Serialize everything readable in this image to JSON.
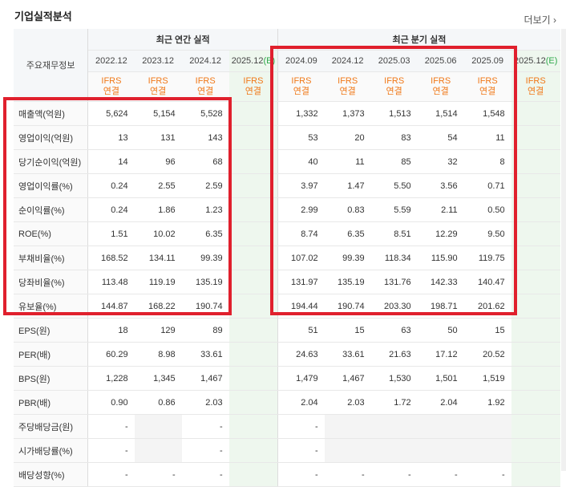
{
  "section": {
    "title": "기업실적분석",
    "more": "더보기"
  },
  "header": {
    "row_label_header": "주요재무정보",
    "annual_group": "최근 연간 실적",
    "quarter_group": "최근 분기 실적",
    "annual_periods": [
      "2022.12",
      "2023.12",
      "2024.12",
      "2025.12"
    ],
    "quarter_periods": [
      "2024.09",
      "2024.12",
      "2025.03",
      "2025.06",
      "2025.09",
      "2025.12"
    ],
    "estimate_mark": "(E)",
    "ifrs_line1": "IFRS",
    "ifrs_line2": "연결"
  },
  "rows": [
    {
      "label": "매출액(억원)",
      "annual": [
        "5,624",
        "5,154",
        "5,528",
        ""
      ],
      "quarter": [
        "1,332",
        "1,373",
        "1,513",
        "1,514",
        "1,548",
        ""
      ]
    },
    {
      "label": "영업이익(억원)",
      "annual": [
        "13",
        "131",
        "143",
        ""
      ],
      "quarter": [
        "53",
        "20",
        "83",
        "54",
        "11",
        ""
      ]
    },
    {
      "label": "당기순이익(억원)",
      "annual": [
        "14",
        "96",
        "68",
        ""
      ],
      "quarter": [
        "40",
        "11",
        "85",
        "32",
        "8",
        ""
      ]
    },
    {
      "label": "영업이익률(%)",
      "annual": [
        "0.24",
        "2.55",
        "2.59",
        ""
      ],
      "quarter": [
        "3.97",
        "1.47",
        "5.50",
        "3.56",
        "0.71",
        ""
      ]
    },
    {
      "label": "순이익률(%)",
      "annual": [
        "0.24",
        "1.86",
        "1.23",
        ""
      ],
      "quarter": [
        "2.99",
        "0.83",
        "5.59",
        "2.11",
        "0.50",
        ""
      ]
    },
    {
      "label": "ROE(%)",
      "annual": [
        "1.51",
        "10.02",
        "6.35",
        ""
      ],
      "quarter": [
        "8.74",
        "6.35",
        "8.51",
        "12.29",
        "9.50",
        ""
      ]
    },
    {
      "label": "부채비율(%)",
      "annual": [
        "168.52",
        "134.11",
        "99.39",
        ""
      ],
      "quarter": [
        "107.02",
        "99.39",
        "118.34",
        "115.90",
        "119.75",
        ""
      ]
    },
    {
      "label": "당좌비율(%)",
      "annual": [
        "113.48",
        "119.19",
        "135.19",
        ""
      ],
      "quarter": [
        "131.97",
        "135.19",
        "131.76",
        "142.33",
        "140.47",
        ""
      ]
    },
    {
      "label": "유보율(%)",
      "annual": [
        "144.87",
        "168.22",
        "190.74",
        ""
      ],
      "quarter": [
        "194.44",
        "190.74",
        "203.30",
        "198.71",
        "201.62",
        ""
      ]
    },
    {
      "label": "EPS(원)",
      "annual": [
        "18",
        "129",
        "89",
        ""
      ],
      "quarter": [
        "51",
        "15",
        "63",
        "50",
        "15",
        ""
      ]
    },
    {
      "label": "PER(배)",
      "annual": [
        "60.29",
        "8.98",
        "33.61",
        ""
      ],
      "quarter": [
        "24.63",
        "33.61",
        "21.63",
        "17.12",
        "20.52",
        ""
      ]
    },
    {
      "label": "BPS(원)",
      "annual": [
        "1,228",
        "1,345",
        "1,467",
        ""
      ],
      "quarter": [
        "1,479",
        "1,467",
        "1,530",
        "1,501",
        "1,519",
        ""
      ]
    },
    {
      "label": "PBR(배)",
      "annual": [
        "0.90",
        "0.86",
        "2.03",
        ""
      ],
      "quarter": [
        "2.04",
        "2.03",
        "1.72",
        "2.04",
        "1.92",
        ""
      ]
    },
    {
      "label": "주당배당금(원)",
      "annual": [
        "-",
        "",
        "-",
        ""
      ],
      "quarter": [
        "-",
        "",
        "",
        "",
        "",
        ""
      ]
    },
    {
      "label": "시가배당률(%)",
      "annual": [
        "-",
        "",
        "-",
        ""
      ],
      "quarter": [
        "-",
        "",
        "",
        "",
        "",
        ""
      ]
    },
    {
      "label": "배당성향(%)",
      "annual": [
        "-",
        "-",
        "-",
        ""
      ],
      "quarter": [
        "-",
        "-",
        "-",
        "-",
        "-",
        ""
      ]
    }
  ],
  "highlight_color": "#e0202d",
  "ifrs_color": "#f07818",
  "estimate_color": "#2ea84a"
}
